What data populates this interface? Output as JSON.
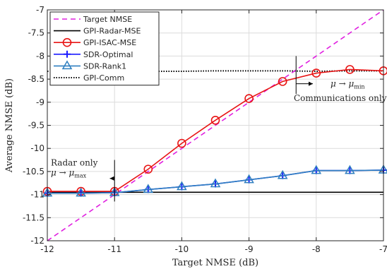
{
  "chart_data": {
    "type": "line",
    "xlabel": "Target NMSE (dB)",
    "ylabel": "Average NMSE (dB)",
    "xlim": [
      -12,
      -7
    ],
    "ylim": [
      -12,
      -7
    ],
    "xticks": [
      "-12",
      "-11",
      "-10",
      "-9",
      "-8",
      "-7"
    ],
    "yticks": [
      "-12",
      "-11.5",
      "-11",
      "-10.5",
      "-10",
      "-9.5",
      "-9",
      "-8.5",
      "-8",
      "-7.5",
      "-7"
    ],
    "grid": true,
    "legend_position": "top-left",
    "series": [
      {
        "name": "Target NMSE",
        "color": "#e020e0",
        "style": "dashed",
        "marker": "none",
        "x": [
          -12,
          -7
        ],
        "y": [
          -12,
          -7
        ]
      },
      {
        "name": "GPI-Radar-MSE",
        "color": "#000000",
        "style": "solid",
        "marker": "none",
        "x": [
          -12,
          -7
        ],
        "y": [
          -10.95,
          -10.95
        ]
      },
      {
        "name": "GPI-ISAC-MSE",
        "color": "#e81414",
        "style": "solid",
        "marker": "circle",
        "x": [
          -12,
          -11.5,
          -11,
          -10.5,
          -10,
          -9.5,
          -9,
          -8.5,
          -8,
          -7.5,
          -7
        ],
        "y": [
          -10.93,
          -10.93,
          -10.93,
          -10.45,
          -9.89,
          -9.39,
          -8.92,
          -8.55,
          -8.37,
          -8.29,
          -8.32
        ]
      },
      {
        "name": "SDR-Optimal",
        "color": "#1a1aff",
        "style": "solid",
        "marker": "plus",
        "x": [
          -12,
          -11.5,
          -11,
          -10.5,
          -10,
          -9.5,
          -9,
          -8.5,
          -8,
          -7.5,
          -7
        ],
        "y": [
          -10.97,
          -10.97,
          -10.96,
          -10.89,
          -10.83,
          -10.77,
          -10.68,
          -10.59,
          -10.48,
          -10.48,
          -10.47
        ]
      },
      {
        "name": "SDR-Rank1",
        "color": "#2f7fc0",
        "style": "solid",
        "marker": "triangle",
        "x": [
          -12,
          -11.5,
          -11,
          -10.5,
          -10,
          -9.5,
          -9,
          -8.5,
          -8,
          -7.5,
          -7
        ],
        "y": [
          -10.97,
          -10.97,
          -10.96,
          -10.89,
          -10.83,
          -10.77,
          -10.68,
          -10.59,
          -10.48,
          -10.48,
          -10.47
        ]
      },
      {
        "name": "GPI-Comm",
        "color": "#000000",
        "style": "dotted",
        "marker": "none",
        "x": [
          -12,
          -11.5,
          -11,
          -10.5,
          -10,
          -9.5,
          -9,
          -8.5,
          -8,
          -7.5,
          -7
        ],
        "y": [
          -8.33,
          -8.33,
          -8.33,
          -8.33,
          -8.33,
          -8.32,
          -8.32,
          -8.32,
          -8.33,
          -8.32,
          -8.32
        ]
      }
    ],
    "annotations": {
      "radar_only": "Radar only",
      "mu_max": "μ → μ",
      "mu_max_sub": "max",
      "comm_only": "Communications only",
      "mu_min": "μ → μ",
      "mu_min_sub": "min"
    },
    "annotation_marks": {
      "radar_x": -11,
      "radar_y_range": [
        -11.15,
        -10.25
      ],
      "radar_arrow_y": -10.65,
      "radar_arrow_from_x": -11,
      "radar_arrow_to_x": -11.07,
      "comm_x": -8.3,
      "comm_y_range": [
        -8.82,
        -8.0
      ],
      "comm_arrow_y": -8.6,
      "comm_arrow_from_x": -8.3,
      "comm_arrow_to_x": -8.05
    }
  }
}
